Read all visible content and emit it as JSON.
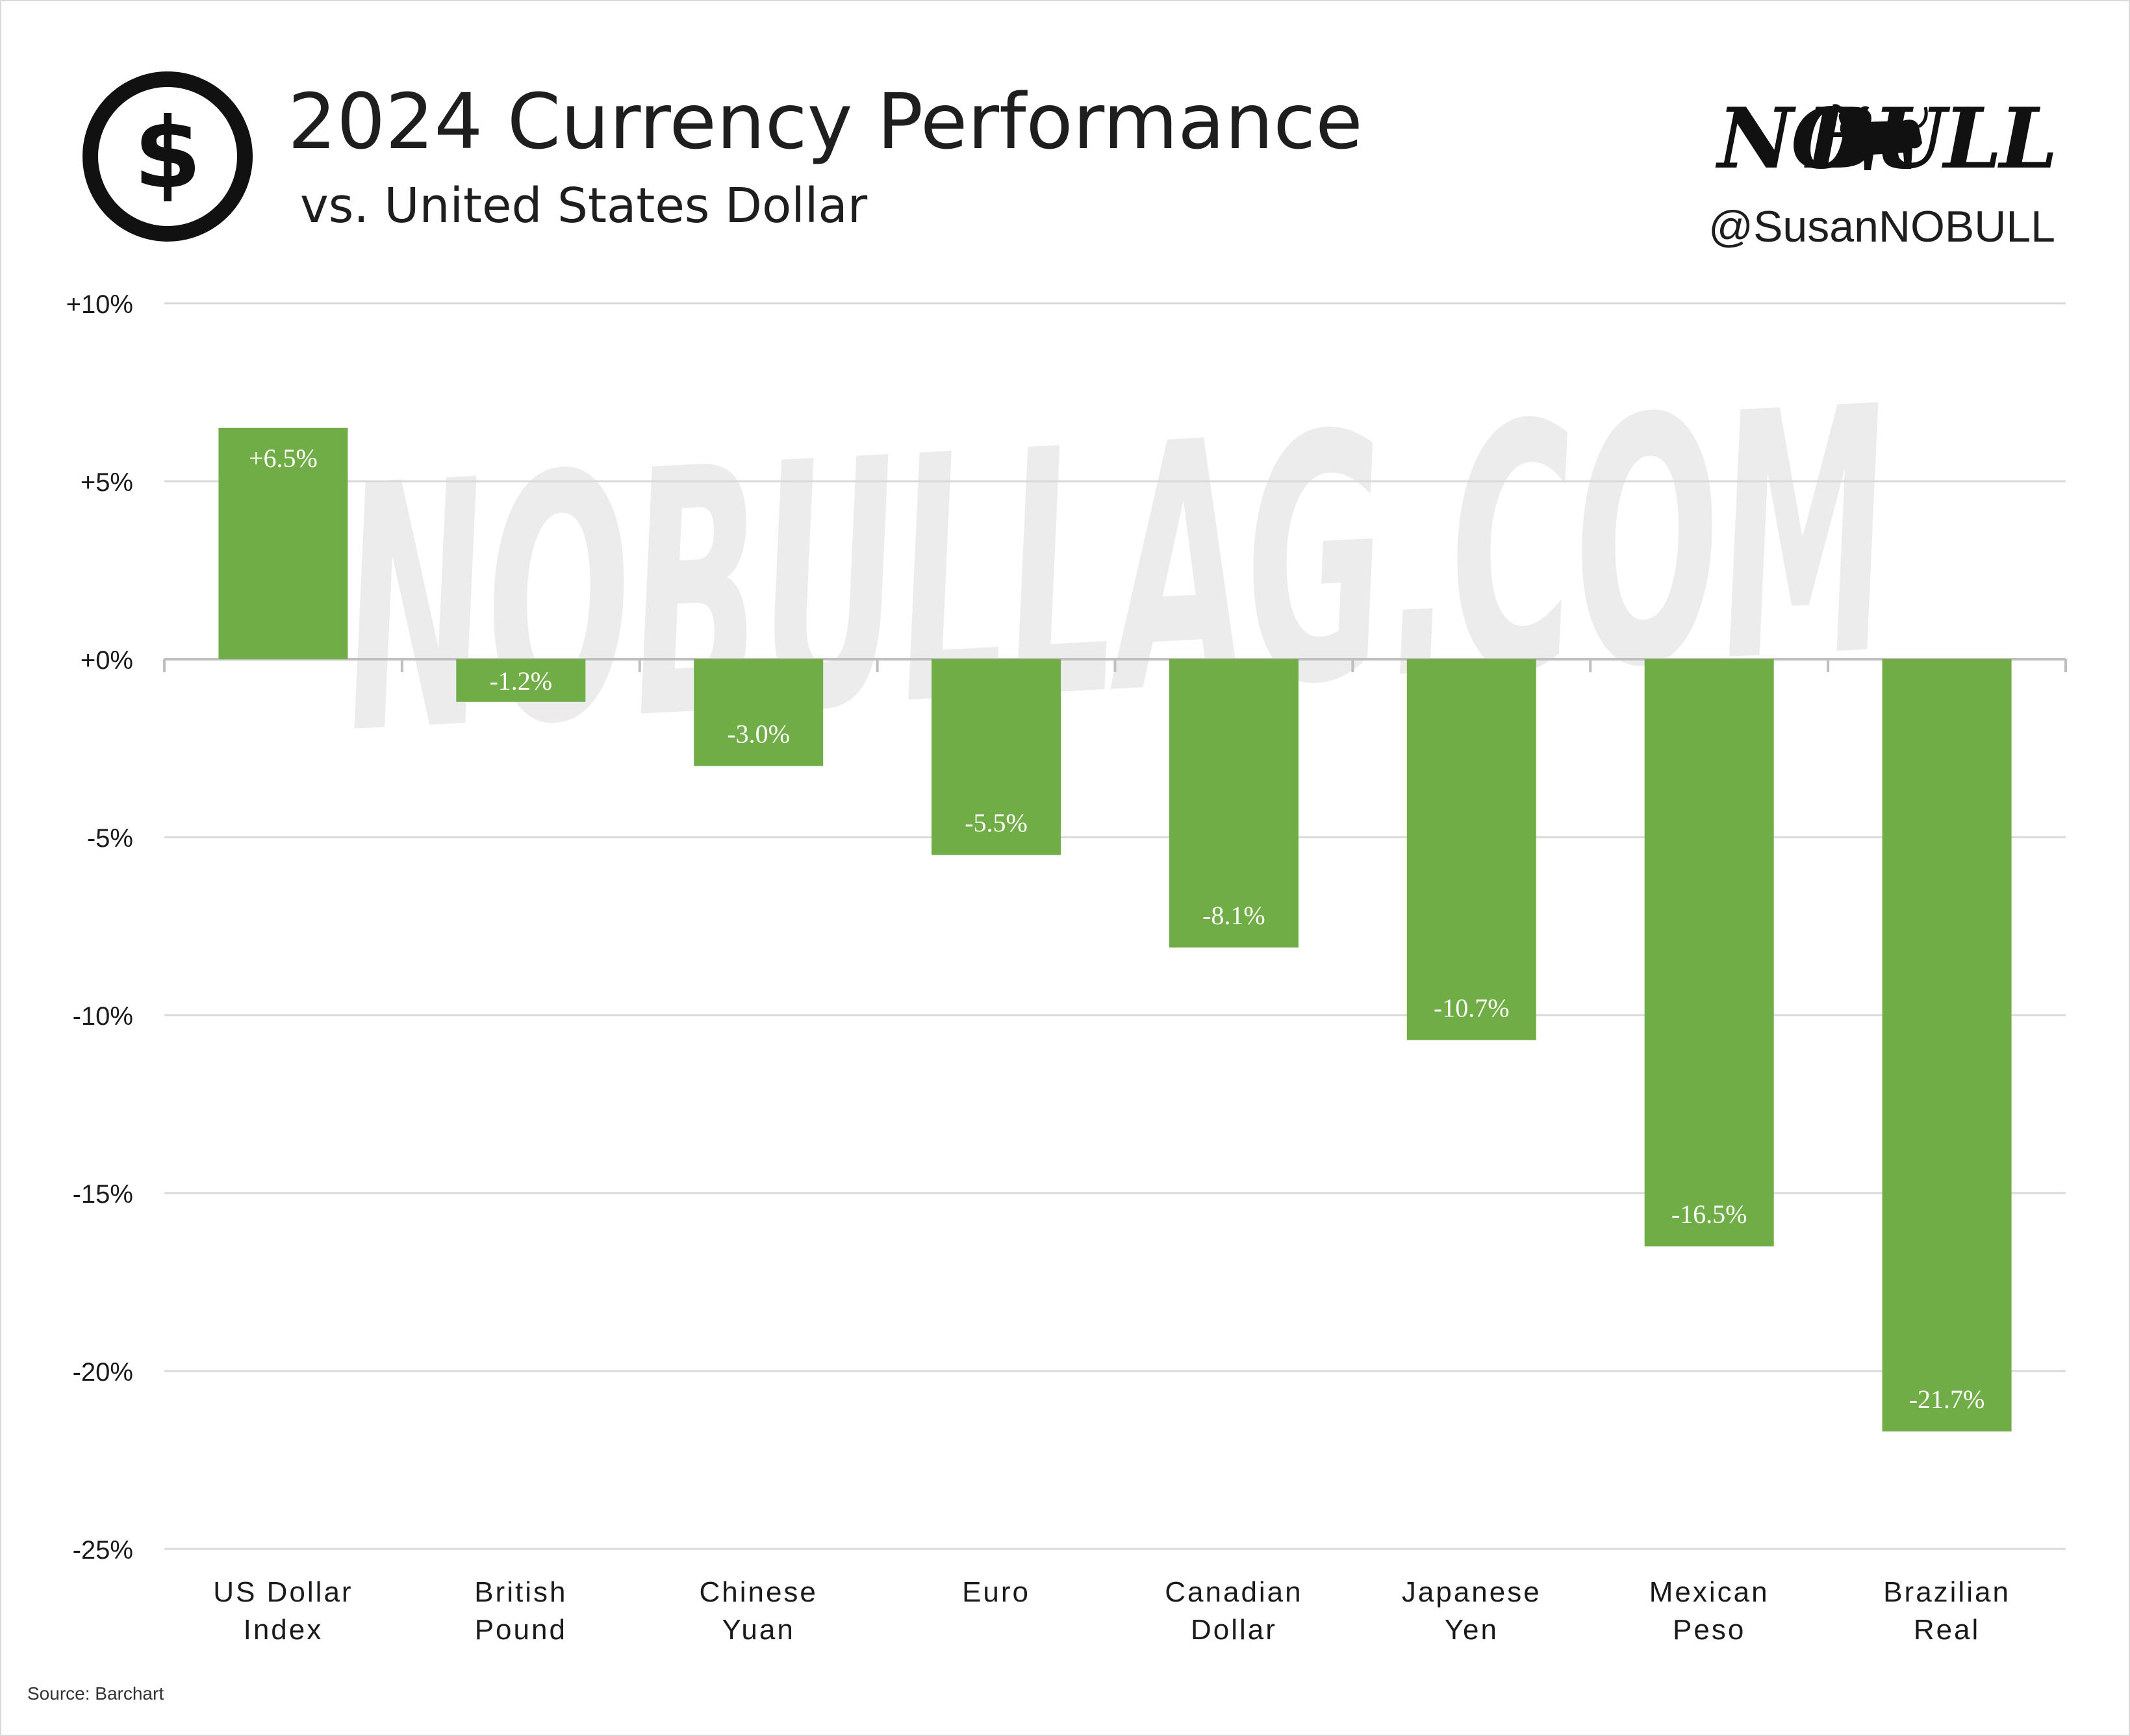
{
  "header": {
    "title": "2024 Currency Performance",
    "subtitle": "vs. United States Dollar",
    "brand_left": "NO",
    "brand_right": "BULL",
    "handle": "@SusanNOBULL",
    "icon": "dollar-circle-icon",
    "brand_icon": "bull-icon"
  },
  "footer": {
    "source": "Source: Barchart"
  },
  "watermark": "NOBULLAG.COM",
  "colors": {
    "bar": "#70ad47",
    "grid": "#d9d9d9",
    "axis": "#bfbfbf",
    "text": "#1a1a1a",
    "watermark": "#ececec"
  },
  "chart_data": {
    "type": "bar",
    "categories": [
      [
        "US Dollar",
        "Index"
      ],
      [
        "British",
        "Pound"
      ],
      [
        "Chinese",
        "Yuan"
      ],
      [
        "Euro"
      ],
      [
        "Canadian",
        "Dollar"
      ],
      [
        "Japanese",
        "Yen"
      ],
      [
        "Mexican",
        "Peso"
      ],
      [
        "Brazilian",
        "Real"
      ]
    ],
    "values": [
      6.5,
      -1.2,
      -3.0,
      -5.5,
      -8.1,
      -10.7,
      -16.5,
      -21.7
    ],
    "data_labels": [
      "+6.5%",
      "-1.2%",
      "-3.0%",
      "-5.5%",
      "-8.1%",
      "-10.7%",
      "-16.5%",
      "-21.7%"
    ],
    "y_ticks": [
      10,
      5,
      0,
      -5,
      -10,
      -15,
      -20,
      -25
    ],
    "y_tick_labels": [
      "+10%",
      "+5%",
      "+0%",
      "-5%",
      "-10%",
      "-15%",
      "-20%",
      "-25%"
    ],
    "ylim": [
      -25,
      10
    ],
    "grid": true,
    "legend": "none"
  }
}
